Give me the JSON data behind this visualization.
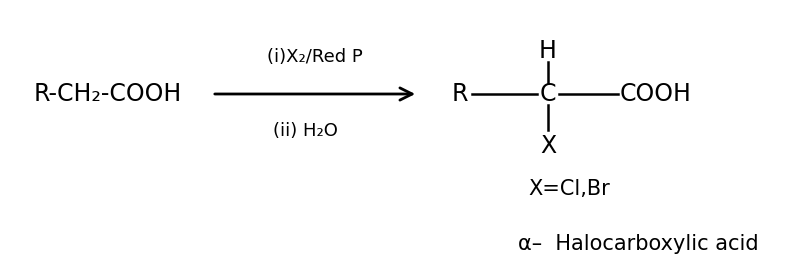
{
  "bg_color": "#ffffff",
  "reactant": "R-CH₂-COOH",
  "condition1": "(i)X₂/Red P",
  "condition2": "(ii) H₂O",
  "product_R": "R",
  "product_C": "C",
  "product_H": "H",
  "product_COOH": "COOH",
  "product_X": "X",
  "note1": "X=Cl,Br",
  "note2": "α–  Halocarboxylic acid",
  "font_size_main": 17,
  "font_size_cond": 13,
  "font_size_note1": 15,
  "font_size_note2": 15
}
